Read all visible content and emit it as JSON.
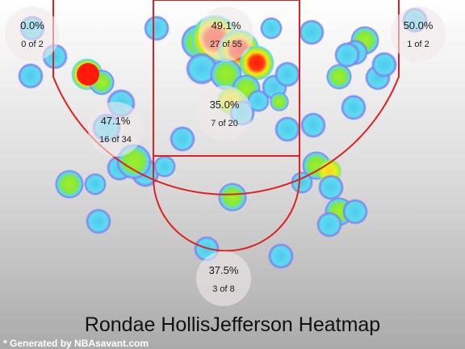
{
  "chart_data": {
    "type": "heatmap",
    "title": "Rondae HollisJefferson Heatmap",
    "zones": [
      {
        "name": "left-corner-three",
        "pct": "0.0%",
        "made_of": "0 of 2",
        "made": 0,
        "attempts": 2
      },
      {
        "name": "paint",
        "pct": "49.1%",
        "made_of": "27 of 55",
        "made": 27,
        "attempts": 55
      },
      {
        "name": "right-corner-three",
        "pct": "50.0%",
        "made_of": "1 of 2",
        "made": 1,
        "attempts": 2
      },
      {
        "name": "left-midrange",
        "pct": "47.1%",
        "made_of": "16 of 34",
        "made": 16,
        "attempts": 34
      },
      {
        "name": "mid-paint",
        "pct": "35.0%",
        "made_of": "7 of 20",
        "made": 7,
        "attempts": 20
      },
      {
        "name": "top-of-key-three",
        "pct": "37.5%",
        "made_of": "3 of 8",
        "made": 3,
        "attempts": 8
      }
    ],
    "colors": {
      "court_line": "#e02020",
      "zone_bubble": "#f0eaea",
      "cold": "#5ad8ee",
      "warm": "#a6ec2a",
      "hot": "#ff1a0a"
    }
  },
  "credit": "* Generated by NBAsavant.com"
}
